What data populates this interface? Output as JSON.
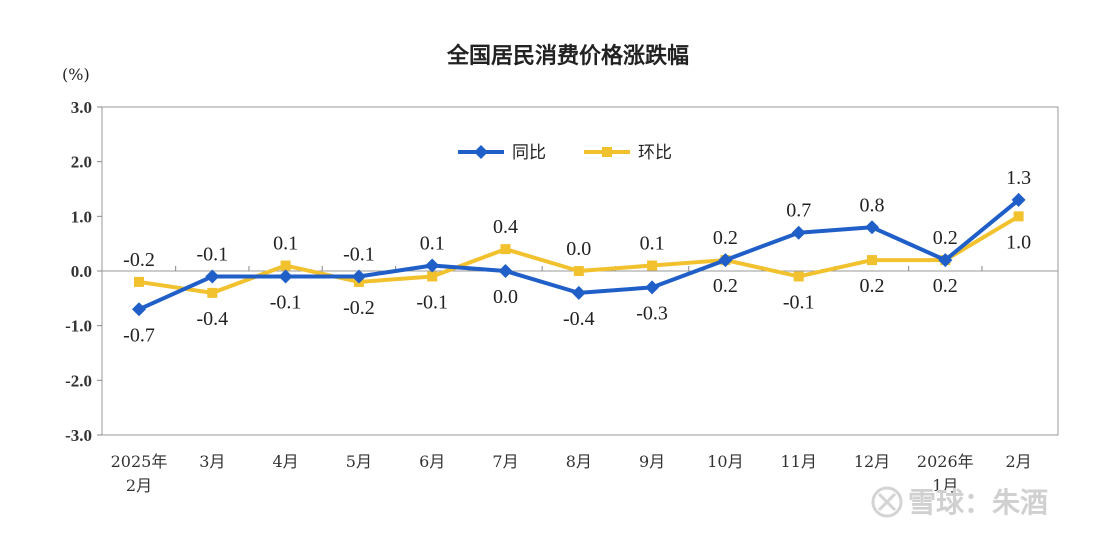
{
  "watermark": "雪球：朱酒",
  "chart_data": {
    "type": "line",
    "title": "全国居民消费价格涨跌幅",
    "unit_label": "(%)",
    "categories": [
      [
        "2025年",
        "2月"
      ],
      [
        "3月"
      ],
      [
        "4月"
      ],
      [
        "5月"
      ],
      [
        "6月"
      ],
      [
        "7月"
      ],
      [
        "8月"
      ],
      [
        "9月"
      ],
      [
        "10月"
      ],
      [
        "11月"
      ],
      [
        "12月"
      ],
      [
        "2026年",
        "1月"
      ],
      [
        "2月"
      ]
    ],
    "ylim": [
      -3.0,
      3.0
    ],
    "yticks": [
      "3.0",
      "2.0",
      "1.0",
      "0.0",
      "-1.0",
      "-2.0",
      "-3.0"
    ],
    "ytick_values": [
      3,
      2,
      1,
      0,
      -1,
      -2,
      -3
    ],
    "legend_position": "top-center",
    "series": [
      {
        "name": "同比",
        "color": "#1f5fc7",
        "marker": "diamond",
        "values": [
          -0.7,
          -0.1,
          -0.1,
          -0.1,
          0.1,
          0.0,
          -0.4,
          -0.3,
          0.2,
          0.7,
          0.8,
          0.2,
          1.3
        ],
        "labels": [
          "-0.7",
          "-0.1",
          "-0.1",
          "-0.1",
          "0.1",
          "0.0",
          "-0.4",
          "-0.3",
          "0.2",
          "0.7",
          "0.8",
          "0.2",
          "1.3"
        ]
      },
      {
        "name": "环比",
        "color": "#f2c12e",
        "marker": "square",
        "values": [
          -0.2,
          -0.4,
          0.1,
          -0.2,
          -0.1,
          0.4,
          0.0,
          0.1,
          0.2,
          -0.1,
          0.2,
          0.2,
          1.0
        ],
        "labels": [
          "-0.2",
          "-0.4",
          "0.1",
          "-0.2",
          "-0.1",
          "0.4",
          "0.0",
          "0.1",
          "0.2",
          "-0.1",
          "0.2",
          "0.2",
          "1.0"
        ]
      }
    ]
  }
}
